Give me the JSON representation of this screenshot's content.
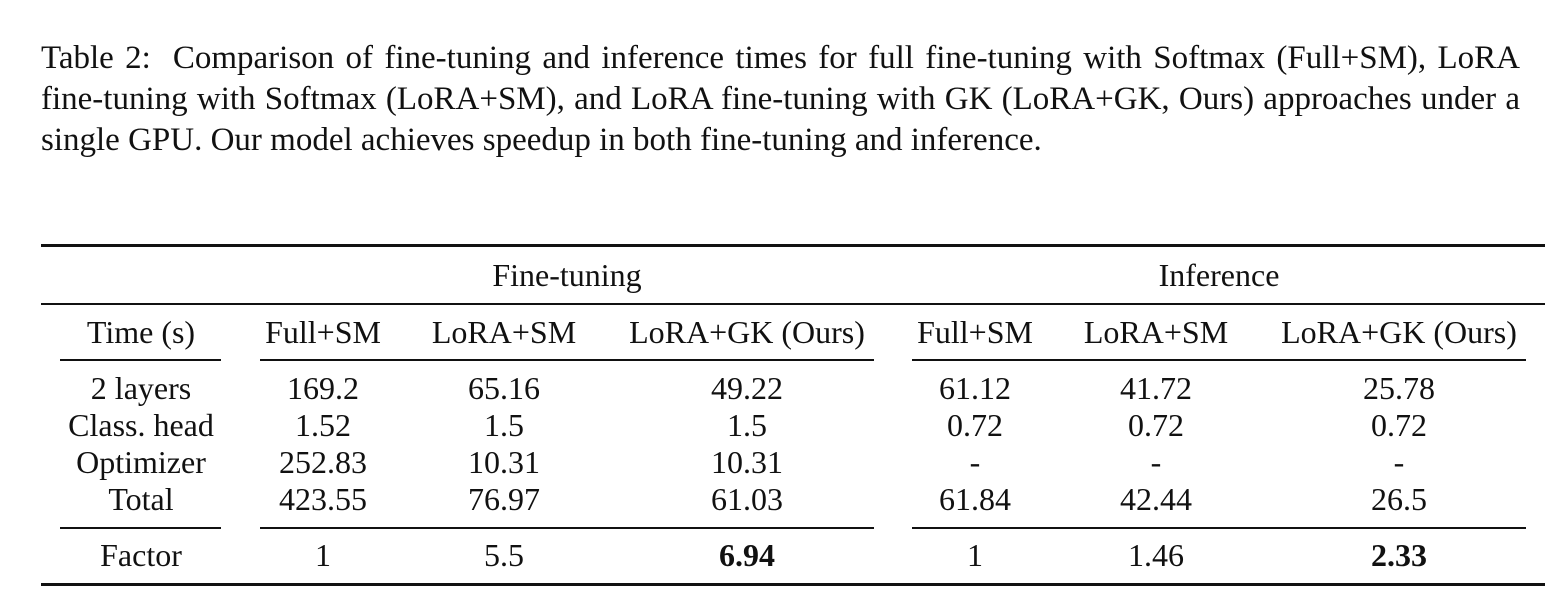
{
  "caption": {
    "label": "Table 2:",
    "text": "Comparison of fine-tuning and inference times for full fine-tuning with Softmax (Full+SM), LoRA fine-tuning with Softmax (LoRA+SM), and LoRA fine-tuning with GK (LoRA+GK, Ours) approaches under a single GPU. Our model achieves speedup in both fine-tuning and inference."
  },
  "table": {
    "group_headers": {
      "fine_tuning": "Fine-tuning",
      "inference": "Inference"
    },
    "column_headers": {
      "row_label": "Time (s)",
      "ft_full_sm": "Full+SM",
      "ft_lora_sm": "LoRA+SM",
      "ft_lora_gk": "LoRA+GK (Ours)",
      "inf_full_sm": "Full+SM",
      "inf_lora_sm": "LoRA+SM",
      "inf_lora_gk": "LoRA+GK (Ours)"
    },
    "rows": [
      {
        "label": "2 layers",
        "ft_full_sm": "169.2",
        "ft_lora_sm": "65.16",
        "ft_lora_gk": "49.22",
        "inf_full_sm": "61.12",
        "inf_lora_sm": "41.72",
        "inf_lora_gk": "25.78"
      },
      {
        "label": "Class. head",
        "ft_full_sm": "1.52",
        "ft_lora_sm": "1.5",
        "ft_lora_gk": "1.5",
        "inf_full_sm": "0.72",
        "inf_lora_sm": "0.72",
        "inf_lora_gk": "0.72"
      },
      {
        "label": "Optimizer",
        "ft_full_sm": "252.83",
        "ft_lora_sm": "10.31",
        "ft_lora_gk": "10.31",
        "inf_full_sm": "-",
        "inf_lora_sm": "-",
        "inf_lora_gk": "-"
      },
      {
        "label": "Total",
        "ft_full_sm": "423.55",
        "ft_lora_sm": "76.97",
        "ft_lora_gk": "61.03",
        "inf_full_sm": "61.84",
        "inf_lora_sm": "42.44",
        "inf_lora_gk": "26.5"
      }
    ],
    "factor_row": {
      "label": "Factor",
      "ft_full_sm": "1",
      "ft_lora_sm": "5.5",
      "ft_lora_gk": "6.94",
      "inf_full_sm": "1",
      "inf_lora_sm": "1.46",
      "inf_lora_gk": "2.33"
    }
  }
}
